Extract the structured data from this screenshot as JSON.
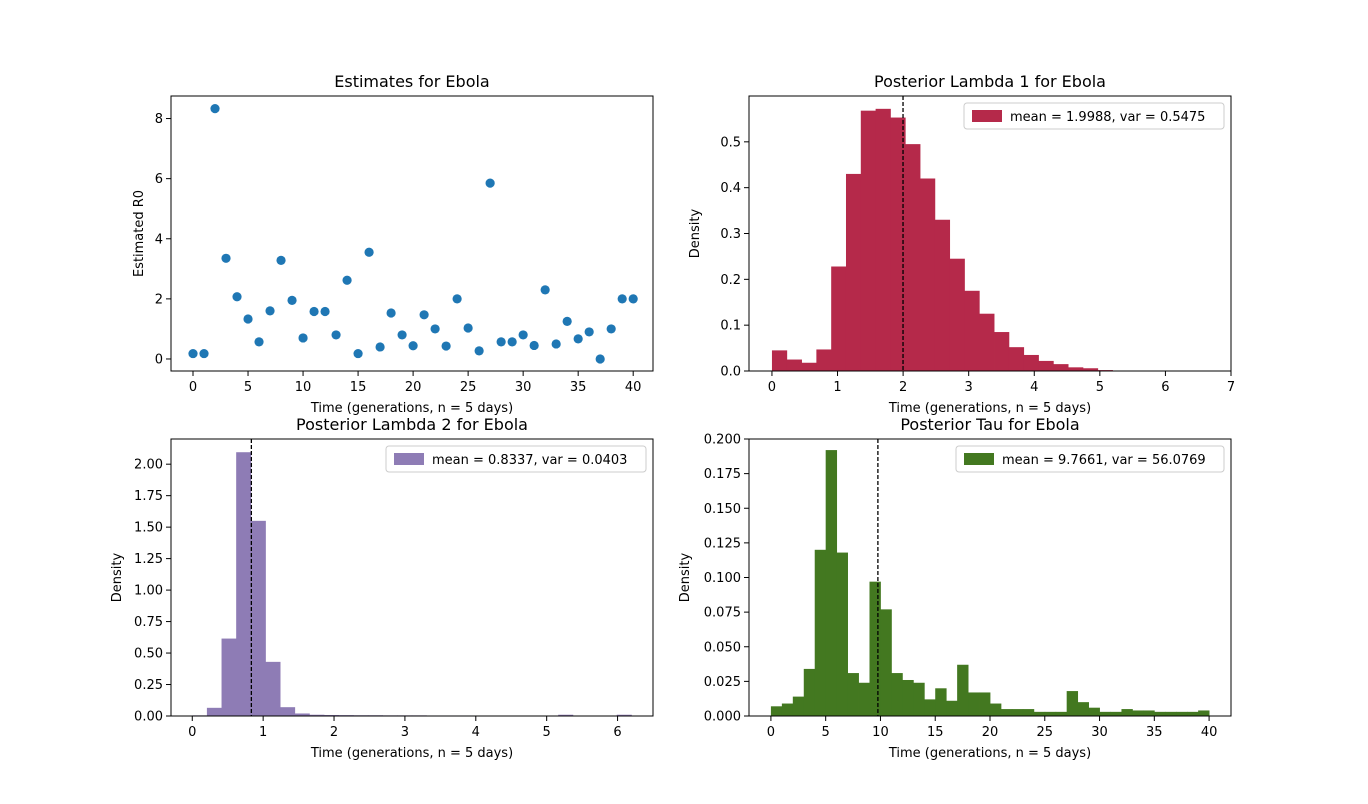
{
  "chart_data": [
    {
      "type": "scatter",
      "title": "Estimates for Ebola",
      "xlabel": "Time (generations, n = 5 days)",
      "ylabel": "Estimated R0",
      "xlim": [
        -2,
        41.8
      ],
      "ylim": [
        -0.4,
        8.75
      ],
      "xticks": [
        0,
        5,
        10,
        15,
        20,
        25,
        30,
        35,
        40
      ],
      "yticks": [
        0,
        2,
        4,
        6,
        8
      ],
      "color": "#1f77b4",
      "x": [
        0,
        1,
        2,
        3,
        4,
        5,
        6,
        7,
        8,
        9,
        10,
        11,
        12,
        13,
        14,
        15,
        16,
        17,
        18,
        19,
        20,
        21,
        22,
        23,
        24,
        25,
        26,
        27,
        28,
        29,
        30,
        31,
        32,
        33,
        34,
        35,
        36,
        37,
        38,
        39,
        40
      ],
      "y": [
        0.18,
        0.18,
        8.33,
        3.35,
        2.07,
        1.33,
        0.57,
        1.6,
        3.28,
        1.95,
        0.7,
        1.58,
        1.58,
        0.8,
        2.62,
        0.18,
        3.55,
        0.4,
        1.53,
        0.8,
        0.44,
        1.47,
        1.0,
        0.43,
        2.0,
        1.03,
        0.27,
        5.85,
        0.57,
        0.57,
        0.8,
        0.45,
        2.3,
        0.5,
        1.25,
        0.67,
        0.9,
        0.0,
        1.0,
        2.0,
        2.0
      ]
    },
    {
      "type": "histogram",
      "title": "Posterior Lambda 1 for Ebola",
      "xlabel": "Time (generations, n = 5 days)",
      "ylabel": "Density",
      "xlim": [
        -0.35,
        7.0
      ],
      "ylim": [
        0,
        0.6
      ],
      "xticks": [
        0,
        1,
        2,
        3,
        4,
        5,
        6,
        7
      ],
      "yticks": [
        0.0,
        0.1,
        0.2,
        0.3,
        0.4,
        0.5
      ],
      "color": "#b5294a",
      "bin_start": 0,
      "bin_width": 0.2258,
      "values": [
        0.045,
        0.025,
        0.018,
        0.047,
        0.228,
        0.43,
        0.568,
        0.572,
        0.553,
        0.495,
        0.42,
        0.33,
        0.245,
        0.175,
        0.125,
        0.085,
        0.052,
        0.035,
        0.022,
        0.015,
        0.008,
        0.006,
        0.002,
        0.001,
        0.001,
        0.0005,
        0.0003,
        0.0002,
        0.0001,
        0.0001
      ],
      "mean_line": 1.9988,
      "legend": "mean = 1.9988, var = 0.5475",
      "legend_position": "upper right"
    },
    {
      "type": "histogram",
      "title": "Posterior Lambda 2 for Ebola",
      "xlabel": "Time (generations, n = 5 days)",
      "ylabel": "Density",
      "xlim": [
        -0.3,
        6.5
      ],
      "ylim": [
        0,
        2.2
      ],
      "xticks": [
        0,
        1,
        2,
        3,
        4,
        5,
        6
      ],
      "yticks": [
        0.0,
        0.25,
        0.5,
        0.75,
        1.0,
        1.25,
        1.5,
        1.75,
        2.0
      ],
      "color": "#8e7cb5",
      "bin_start": 0,
      "bin_width": 0.2065,
      "values": [
        0.005,
        0.065,
        0.615,
        2.095,
        1.55,
        0.43,
        0.07,
        0.02,
        0.01,
        0.008,
        0.007,
        0.006,
        0.006,
        0.005,
        0.005,
        0.005,
        0.004,
        0.004,
        0.004,
        0.003,
        0.002,
        0.001,
        0.001,
        0.001,
        0.001,
        0.01,
        0.001,
        0.001,
        0.001,
        0.01
      ],
      "mean_line": 0.8337,
      "legend": "mean = 0.8337, var = 0.0403",
      "legend_position": "upper right"
    },
    {
      "type": "histogram",
      "title": "Posterior Tau for Ebola",
      "xlabel": "Time (generations, n = 5 days)",
      "ylabel": "Density",
      "xlim": [
        -2,
        42
      ],
      "ylim": [
        0,
        0.2
      ],
      "xticks": [
        0,
        5,
        10,
        15,
        20,
        25,
        30,
        35,
        40
      ],
      "yticks": [
        0.0,
        0.025,
        0.05,
        0.075,
        0.1,
        0.125,
        0.15,
        0.175,
        0.2
      ],
      "color": "#437820",
      "bin_start": 0,
      "bin_width": 1,
      "values": [
        0.007,
        0.009,
        0.014,
        0.034,
        0.12,
        0.192,
        0.118,
        0.031,
        0.024,
        0.097,
        0.077,
        0.031,
        0.026,
        0.024,
        0.012,
        0.02,
        0.011,
        0.037,
        0.017,
        0.017,
        0.009,
        0.005,
        0.005,
        0.005,
        0.003,
        0.003,
        0.003,
        0.018,
        0.01,
        0.006,
        0.003,
        0.003,
        0.005,
        0.004,
        0.004,
        0.003,
        0.003,
        0.003,
        0.003,
        0.004
      ],
      "mean_line": 9.7661,
      "legend": "mean = 9.7661, var = 56.0769",
      "legend_position": "upper right"
    }
  ]
}
